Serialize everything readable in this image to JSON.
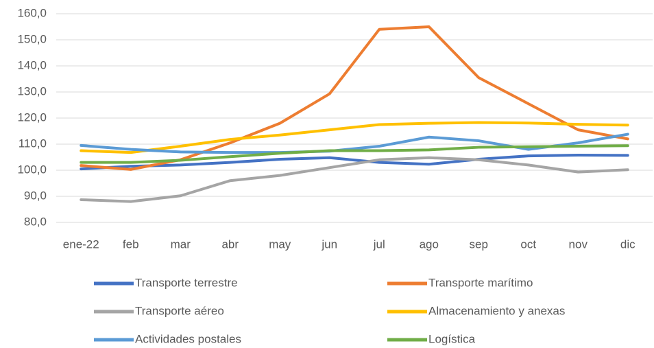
{
  "chart_data": {
    "type": "line",
    "categories": [
      "ene-22",
      "feb",
      "mar",
      "abr",
      "may",
      "jun",
      "jul",
      "ago",
      "sep",
      "oct",
      "nov",
      "dic"
    ],
    "series": [
      {
        "name": "Transporte terrestre",
        "color": "#4472c4",
        "values": [
          100.5,
          101.5,
          102,
          103,
          104.2,
          104.8,
          103,
          102.3,
          104.2,
          105.5,
          105.8,
          105.7
        ]
      },
      {
        "name": "Transporte marítimo",
        "color": "#ed7d31",
        "values": [
          101.8,
          100.3,
          104,
          110.5,
          118,
          129.3,
          154,
          155,
          135.5,
          125.5,
          115.5,
          112
        ]
      },
      {
        "name": "Transporte aéreo",
        "color": "#a5a5a5",
        "values": [
          88.7,
          88,
          90.2,
          96,
          98,
          101,
          104,
          104.8,
          104,
          102,
          99.3,
          100.2
        ]
      },
      {
        "name": "Almacenamiento y anexas",
        "color": "#ffc000",
        "values": [
          107.5,
          106.8,
          109.2,
          111.8,
          113.5,
          115.5,
          117.5,
          118,
          118.3,
          118.1,
          117.6,
          117.3
        ]
      },
      {
        "name": "Actividades postales",
        "color": "#5b9bd5",
        "values": [
          109.5,
          108,
          107,
          106.8,
          106.8,
          107.3,
          109.2,
          112.7,
          111.3,
          108,
          110.5,
          113.8
        ]
      },
      {
        "name": "Logística",
        "color": "#70ad47",
        "values": [
          103,
          103,
          103.8,
          105.2,
          106.5,
          107.5,
          107.5,
          107.8,
          108.8,
          109,
          109.2,
          109.4
        ]
      }
    ],
    "ylim": [
      80,
      160
    ],
    "yticks": [
      {
        "value": 80,
        "label": "80,0"
      },
      {
        "value": 90,
        "label": "90,0"
      },
      {
        "value": 100,
        "label": "100,0"
      },
      {
        "value": 110,
        "label": "110,0"
      },
      {
        "value": 120,
        "label": "120,0"
      },
      {
        "value": 130,
        "label": "130,0"
      },
      {
        "value": 140,
        "label": "140,0"
      },
      {
        "value": 150,
        "label": "150,0"
      },
      {
        "value": 160,
        "label": "160,0"
      }
    ],
    "grid": true
  }
}
